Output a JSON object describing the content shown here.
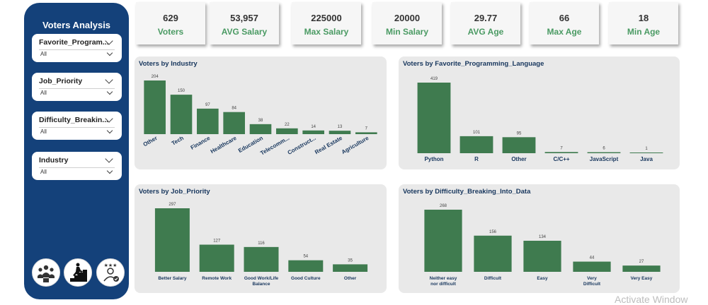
{
  "sidebar": {
    "title": "Voters Analysis",
    "slicers": [
      {
        "label": "Favorite_Program...",
        "value": "All"
      },
      {
        "label": "Job_Priority",
        "value": "All"
      },
      {
        "label": "Difficulty_Breakin...",
        "value": "All"
      },
      {
        "label": "Industry",
        "value": "All"
      }
    ],
    "nav_icons": [
      "team-overview-icon",
      "career-climb-icon",
      "rated-user-icon"
    ]
  },
  "kpis": [
    {
      "value": "629",
      "label": "Voters"
    },
    {
      "value": "53,957",
      "label": "AVG Salary"
    },
    {
      "value": "225000",
      "label": "Max Salary"
    },
    {
      "value": "20000",
      "label": "Min Salary"
    },
    {
      "value": "29.77",
      "label": "AVG Age"
    },
    {
      "value": "66",
      "label": "Max Age"
    },
    {
      "value": "18",
      "label": "Min Age"
    }
  ],
  "colors": {
    "bar": "#3f7b4f",
    "accent_label": "#4a9a63",
    "sidebar": "#14417a",
    "title": "#17365d"
  },
  "chart_data": [
    {
      "type": "bar",
      "title": "Voters by Industry",
      "categories": [
        "Other",
        "Tech",
        "Finance",
        "Healthcare",
        "Education",
        "Telecomm...",
        "Construct...",
        "Real Estate",
        "Agriculture"
      ],
      "values": [
        204,
        150,
        97,
        84,
        38,
        22,
        14,
        13,
        7
      ]
    },
    {
      "type": "bar",
      "title": "Voters by Favorite_Programming_Language",
      "categories": [
        "Python",
        "R",
        "Other",
        "C/C++",
        "JavaScript",
        "Java"
      ],
      "values": [
        419,
        101,
        95,
        7,
        6,
        1
      ]
    },
    {
      "type": "bar",
      "title": "Voters by Job_Priority",
      "categories": [
        "Better Salary",
        "Remote Work",
        "Good Work/Life Balance",
        "Good Culture",
        "Other"
      ],
      "values": [
        297,
        127,
        116,
        54,
        35
      ]
    },
    {
      "type": "bar",
      "title": "Voters by Difficulty_Breaking_Into_Data",
      "categories": [
        "Neither easy nor difficult",
        "Difficult",
        "Easy",
        "Very Difficult",
        "Very Easy"
      ],
      "values": [
        268,
        156,
        134,
        44,
        27
      ]
    }
  ],
  "watermark": "Activate Window"
}
